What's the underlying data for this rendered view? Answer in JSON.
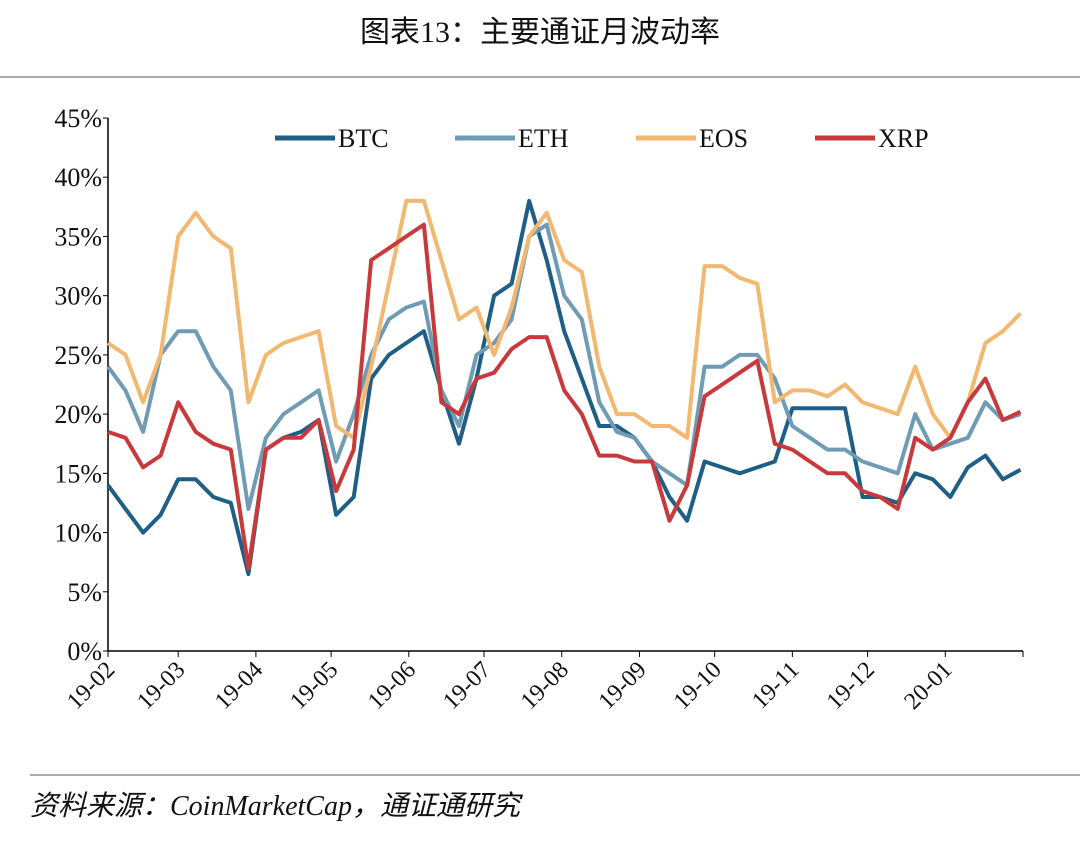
{
  "chart_data": {
    "type": "line",
    "title": "图表13：主要通证月波动率",
    "source": "资料来源：CoinMarketCap，通证通研究",
    "x": [
      0,
      7,
      14,
      21,
      28,
      35,
      42,
      49,
      56,
      63,
      70,
      77,
      84,
      91,
      98,
      105,
      112,
      119,
      126,
      133,
      140,
      147,
      154,
      161,
      168,
      175,
      182,
      189,
      196,
      203,
      210,
      217,
      224,
      231,
      238,
      245,
      252,
      259,
      266,
      273,
      280,
      287,
      294,
      301,
      308,
      315,
      322,
      329,
      336,
      343,
      350,
      357,
      364
    ],
    "xlim": [
      0,
      365
    ],
    "xticks": [
      {
        "value": 0,
        "label": "19-02"
      },
      {
        "value": 28,
        "label": "19-03"
      },
      {
        "value": 59,
        "label": "19-04"
      },
      {
        "value": 89,
        "label": "19-05"
      },
      {
        "value": 120,
        "label": "19-06"
      },
      {
        "value": 150,
        "label": "19-07"
      },
      {
        "value": 181,
        "label": "19-08"
      },
      {
        "value": 212,
        "label": "19-09"
      },
      {
        "value": 242,
        "label": "19-10"
      },
      {
        "value": 273,
        "label": "19-11"
      },
      {
        "value": 303,
        "label": "19-12"
      },
      {
        "value": 334,
        "label": "20-01"
      }
    ],
    "ylim": [
      0,
      45
    ],
    "yticks": [
      {
        "value": 0,
        "label": "0%"
      },
      {
        "value": 5,
        "label": "5%"
      },
      {
        "value": 10,
        "label": "10%"
      },
      {
        "value": 15,
        "label": "15%"
      },
      {
        "value": 20,
        "label": "20%"
      },
      {
        "value": 25,
        "label": "25%"
      },
      {
        "value": 30,
        "label": "30%"
      },
      {
        "value": 35,
        "label": "35%"
      },
      {
        "value": 40,
        "label": "40%"
      },
      {
        "value": 45,
        "label": "45%"
      }
    ],
    "grid": false,
    "legend": "top",
    "series": [
      {
        "name": "BTC",
        "color": "#1f5f86",
        "values": [
          14,
          12,
          10,
          11.5,
          14.5,
          14.5,
          13,
          12.5,
          6.5,
          17,
          18,
          18.5,
          19.5,
          11.5,
          13,
          23,
          25,
          26,
          27,
          22,
          17.5,
          23,
          30,
          31,
          38,
          33,
          27,
          23,
          19,
          19,
          18,
          16,
          13,
          11,
          16,
          15.5,
          15,
          15.5,
          16,
          20.5,
          20.5,
          20.5,
          20.5,
          13,
          13,
          12.5,
          15,
          14.5,
          13,
          15.5,
          16.5,
          14.5,
          15.3
        ]
      },
      {
        "name": "ETH",
        "color": "#6f9bb5",
        "values": [
          24,
          22,
          18.5,
          25,
          27,
          27,
          24,
          22,
          12,
          18,
          20,
          21,
          22,
          16,
          20,
          25,
          28,
          29,
          29.5,
          22,
          19,
          25,
          26,
          28,
          35,
          36,
          30,
          28,
          21,
          18.5,
          18,
          16,
          15,
          14,
          24,
          24,
          25,
          25,
          23,
          19,
          18,
          17,
          17,
          16,
          15.5,
          15,
          20,
          17,
          17.5,
          18,
          21,
          19.5,
          20
        ]
      },
      {
        "name": "EOS",
        "color": "#f2b870",
        "values": [
          26,
          25,
          21,
          25,
          35,
          37,
          35,
          34,
          21,
          25,
          26,
          26.5,
          27,
          19,
          18,
          24,
          31,
          38,
          38,
          33,
          28,
          29,
          25,
          29,
          35,
          37,
          33,
          32,
          24,
          20,
          20,
          19,
          19,
          18,
          32.5,
          32.5,
          31.5,
          31,
          21,
          22,
          22,
          21.5,
          22.5,
          21,
          20.5,
          20,
          24,
          20,
          18,
          21,
          26,
          27,
          28.5
        ]
      },
      {
        "name": "XRP",
        "color": "#c8393b",
        "values": [
          18.5,
          18,
          15.5,
          16.5,
          21,
          18.5,
          17.5,
          17,
          7,
          17,
          18,
          18,
          19.5,
          13.5,
          17,
          33,
          34,
          35,
          36,
          21,
          20,
          23,
          23.5,
          25.5,
          26.5,
          26.5,
          22,
          20,
          16.5,
          16.5,
          16,
          16,
          11,
          14,
          21.5,
          22.5,
          23.5,
          24.5,
          17.5,
          17,
          16,
          15,
          15,
          13.5,
          13,
          12,
          18,
          17,
          18,
          21,
          23,
          19.5,
          20.2
        ]
      }
    ]
  }
}
